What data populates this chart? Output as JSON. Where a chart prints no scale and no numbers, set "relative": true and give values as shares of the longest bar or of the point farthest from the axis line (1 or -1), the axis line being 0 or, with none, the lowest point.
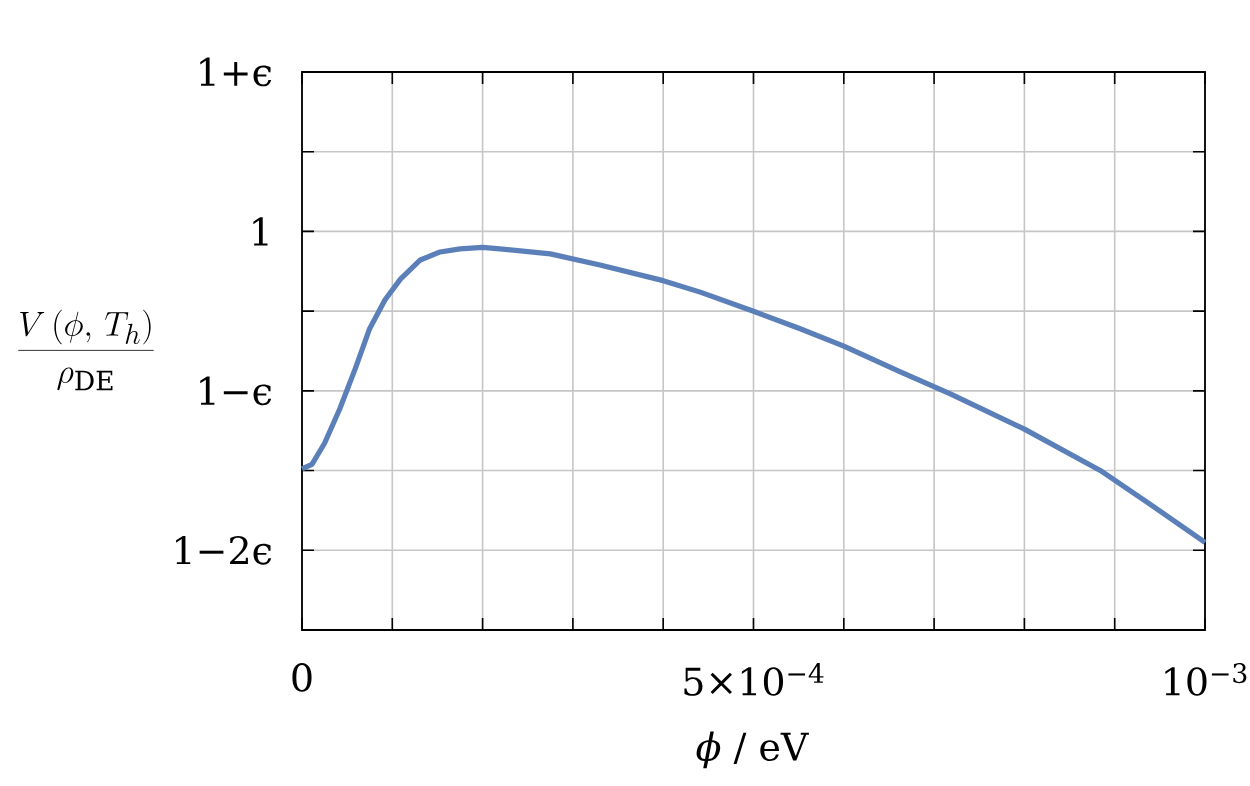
{
  "chart_data": {
    "type": "line",
    "relative": true,
    "xlabel": "*ϕ* / eV",
    "annotations": [
      "1+ϵ",
      "1",
      "1−ϵ",
      "1−2ϵ",
      "\\frac{V\\,(\\phi,\\,T_h)}{\\rho_{\\mathrm{DE}}}"
    ],
    "x": [
      0,
      1.1e-05,
      2.5e-05,
      4.2e-05,
      5.9e-05,
      7.5e-05,
      9.2e-05,
      0.000109,
      0.000131,
      0.000153,
      0.000175,
      0.0002,
      0.000219,
      0.000275,
      0.00033,
      0.0004,
      0.000441,
      0.0005,
      0.000551,
      0.0006,
      0.000662,
      0.000718,
      0.0008,
      0.000884,
      0.000939,
      0.001
    ],
    "series": [
      {
        "color": "#5b7fb8",
        "values": [
          0.421,
          0.433,
          0.488,
          0.579,
          0.683,
          0.788,
          0.863,
          0.917,
          0.967,
          0.988,
          0.996,
          1,
          0.996,
          0.983,
          0.954,
          0.913,
          0.883,
          0.833,
          0.788,
          0.742,
          0.675,
          0.617,
          0.525,
          0.417,
          0.329,
          0.229
        ]
      }
    ],
    "xlim": [
      0,
      0.001
    ],
    "xticks": [
      {
        "value": 0,
        "label": "0"
      },
      {
        "value": 0.0001,
        "label": null
      },
      {
        "value": 0.0002,
        "label": null
      },
      {
        "value": 0.0003,
        "label": null
      },
      {
        "value": 0.0004,
        "label": null
      },
      {
        "value": 0.0005,
        "label": "5×10$^{−4}$"
      },
      {
        "value": 0.0006,
        "label": null
      },
      {
        "value": 0.0007,
        "label": null
      },
      {
        "value": 0.0008,
        "label": null
      },
      {
        "value": 0.0009,
        "label": null
      },
      {
        "value": 0.001,
        "label": "10$^{−3}$"
      }
    ],
    "grid": true,
    "marker": "none",
    "line_style": "solid"
  }
}
